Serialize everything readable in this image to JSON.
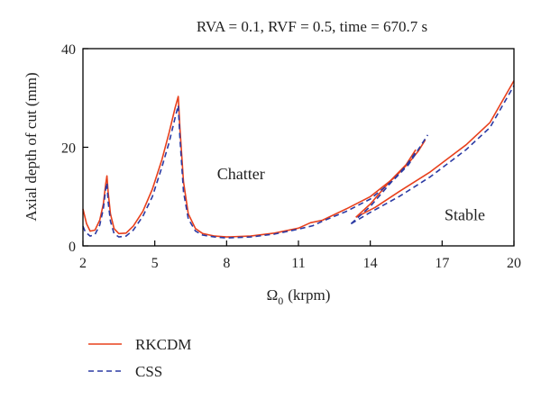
{
  "chart_data": {
    "type": "line",
    "title": "RVA = 0.1, RVF = 0.5, time = 670.7 s",
    "xlabel_symbol": "Ω",
    "xlabel_sub": "0",
    "xlabel_unit": "(krpm)",
    "ylabel": "Axial depth of cut (mm)",
    "xlim": [
      2,
      20
    ],
    "ylim": [
      0,
      40
    ],
    "xticks": [
      2,
      5,
      8,
      11,
      14,
      17,
      20
    ],
    "yticks": [
      0,
      20,
      40
    ],
    "grid": false,
    "legend_position": "bottom-left",
    "annotations": [
      {
        "text": "Chatter",
        "x": 7.6,
        "y": 13.5
      },
      {
        "text": "Stable",
        "x": 17.1,
        "y": 5.2
      }
    ],
    "series": [
      {
        "name": "RKCDM",
        "color": "#e8401c",
        "dash": "solid",
        "segments": [
          [
            [
              2.0,
              7.5
            ],
            [
              2.15,
              4.5
            ],
            [
              2.3,
              3.0
            ],
            [
              2.5,
              3.2
            ],
            [
              2.7,
              5.2
            ],
            [
              2.85,
              8.5
            ],
            [
              2.95,
              12.5
            ],
            [
              3.0,
              14.2
            ],
            [
              3.05,
              11.0
            ],
            [
              3.15,
              6.5
            ],
            [
              3.3,
              3.5
            ],
            [
              3.5,
              2.5
            ],
            [
              3.8,
              2.6
            ],
            [
              4.1,
              4.0
            ],
            [
              4.5,
              7.0
            ],
            [
              4.9,
              11.5
            ],
            [
              5.3,
              17.5
            ],
            [
              5.6,
              23.0
            ],
            [
              5.85,
              28.0
            ],
            [
              5.98,
              30.3
            ],
            [
              6.05,
              24.0
            ],
            [
              6.2,
              13.0
            ],
            [
              6.4,
              6.5
            ],
            [
              6.7,
              3.5
            ],
            [
              7.0,
              2.5
            ],
            [
              7.5,
              2.0
            ],
            [
              8.0,
              1.8
            ],
            [
              9.0,
              2.0
            ],
            [
              10.0,
              2.6
            ],
            [
              11.0,
              3.6
            ],
            [
              11.5,
              4.7
            ],
            [
              12.0,
              5.2
            ],
            [
              13.0,
              7.5
            ],
            [
              14.0,
              10.0
            ],
            [
              15.0,
              13.8
            ],
            [
              15.6,
              16.8
            ],
            [
              16.0,
              19.2
            ],
            [
              16.3,
              21.5
            ]
          ],
          [
            [
              13.4,
              5.8
            ],
            [
              14.0,
              8.5
            ],
            [
              14.8,
              13.0
            ],
            [
              15.5,
              16.5
            ],
            [
              15.9,
              19.5
            ]
          ],
          [
            [
              13.4,
              5.8
            ],
            [
              14.2,
              7.8
            ],
            [
              15.2,
              11.0
            ],
            [
              16.5,
              15.0
            ],
            [
              18.0,
              20.5
            ],
            [
              19.0,
              25.0
            ],
            [
              20.0,
              33.5
            ]
          ]
        ]
      },
      {
        "name": "CSS",
        "color": "#2b3aa3",
        "dash": "dashed",
        "segments": [
          [
            [
              2.0,
              4.0
            ],
            [
              2.1,
              2.8
            ],
            [
              2.3,
              2.0
            ],
            [
              2.5,
              2.3
            ],
            [
              2.7,
              4.2
            ],
            [
              2.85,
              7.5
            ],
            [
              2.95,
              11.5
            ],
            [
              3.0,
              12.8
            ],
            [
              3.05,
              9.0
            ],
            [
              3.15,
              5.0
            ],
            [
              3.3,
              2.5
            ],
            [
              3.5,
              1.8
            ],
            [
              3.8,
              2.0
            ],
            [
              4.1,
              3.2
            ],
            [
              4.5,
              6.0
            ],
            [
              4.9,
              10.0
            ],
            [
              5.3,
              16.0
            ],
            [
              5.6,
              21.0
            ],
            [
              5.85,
              26.0
            ],
            [
              5.98,
              28.5
            ],
            [
              6.05,
              22.0
            ],
            [
              6.2,
              11.0
            ],
            [
              6.4,
              5.5
            ],
            [
              6.7,
              3.0
            ],
            [
              7.0,
              2.2
            ],
            [
              7.5,
              1.8
            ],
            [
              8.0,
              1.6
            ],
            [
              9.0,
              1.8
            ],
            [
              10.0,
              2.4
            ],
            [
              11.0,
              3.4
            ],
            [
              11.6,
              4.1
            ],
            [
              12.0,
              5.0
            ],
            [
              13.0,
              7.0
            ],
            [
              14.0,
              9.5
            ],
            [
              15.0,
              13.5
            ],
            [
              15.6,
              16.5
            ],
            [
              16.0,
              19.5
            ],
            [
              16.4,
              22.5
            ]
          ],
          [
            [
              13.2,
              4.5
            ],
            [
              14.0,
              8.0
            ],
            [
              14.8,
              12.5
            ],
            [
              15.5,
              16.3
            ],
            [
              15.9,
              19.0
            ]
          ],
          [
            [
              13.2,
              4.5
            ],
            [
              14.0,
              6.8
            ],
            [
              15.2,
              10.0
            ],
            [
              16.5,
              14.0
            ],
            [
              18.0,
              19.5
            ],
            [
              19.0,
              24.0
            ],
            [
              20.0,
              32.5
            ]
          ]
        ]
      }
    ]
  }
}
